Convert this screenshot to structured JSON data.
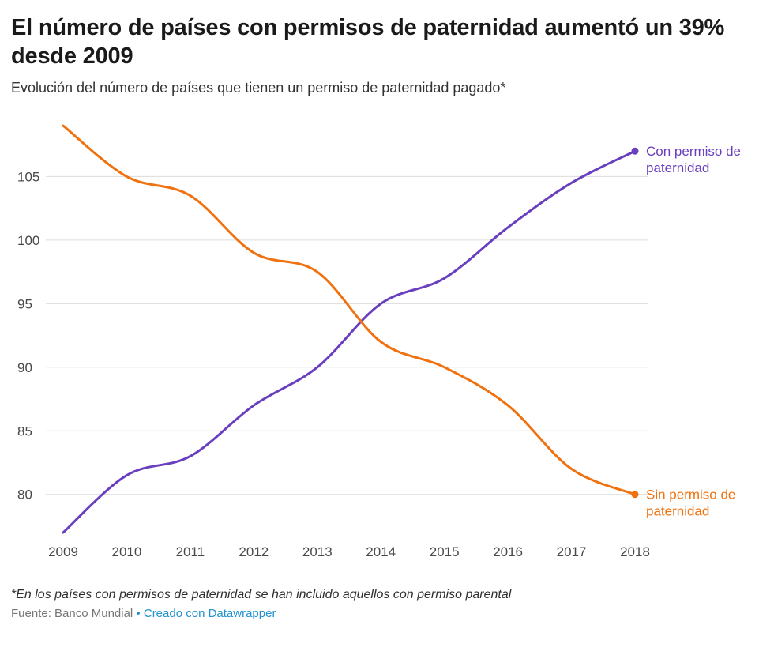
{
  "colors": {
    "purple": "#6a3fbf",
    "orange": "#f0710e",
    "link_blue": "#2191cf",
    "grid": "#dcdcdc",
    "axis_text": "#494949"
  },
  "footer": {
    "footnote": "*En los países con permisos de paternidad se han incluido aquellos con permiso parental",
    "source_prefix": "Fuente: Banco Mundial",
    "separator": " • ",
    "link_text": "Creado con Datawrapper"
  },
  "chart_data": {
    "type": "line",
    "title": "El número de países con permisos de paternidad aumentó un 39% desde 2009",
    "subtitle": "Evolución del número de países que tienen un permiso de paternidad pagado*",
    "x": [
      2009,
      2010,
      2011,
      2012,
      2013,
      2014,
      2015,
      2016,
      2017,
      2018
    ],
    "series": [
      {
        "name": "Con permiso de paternidad",
        "label_lines": [
          "Con permiso de",
          "paternidad"
        ],
        "color_key": "purple",
        "values": [
          77,
          81.5,
          83,
          87,
          90,
          95,
          97,
          101,
          104.5,
          107
        ]
      },
      {
        "name": "Sin permiso de paternidad",
        "label_lines": [
          "Sin permiso de",
          "paternidad"
        ],
        "color_key": "orange",
        "values": [
          109,
          105,
          103.5,
          99,
          97.5,
          92,
          90,
          87,
          82,
          80
        ]
      }
    ],
    "yticks": [
      80,
      85,
      90,
      95,
      100,
      105
    ],
    "ylim": [
      77,
      109.5
    ],
    "grid": "horizontal",
    "legend_position": "end-of-line"
  }
}
